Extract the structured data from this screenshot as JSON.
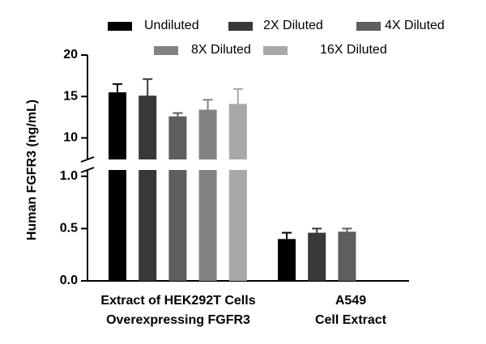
{
  "chart_data": {
    "type": "bar",
    "y_label": "Human FGFR3 (ng/mL)",
    "categories": [
      [
        "Extract of HEK292T Cells",
        "Overexpressing FGFR3"
      ],
      [
        "A549",
        "Cell Extract"
      ]
    ],
    "series": [
      {
        "name": "Undiluted",
        "color": "#000000",
        "values": [
          15.5,
          0.4
        ],
        "errors": [
          1.0,
          0.06
        ]
      },
      {
        "name": "2X Diluted",
        "color": "#383838",
        "values": [
          15.1,
          0.46
        ],
        "errors": [
          2.0,
          0.04
        ]
      },
      {
        "name": "4X Diluted",
        "color": "#5e5e5e",
        "values": [
          12.6,
          0.47
        ],
        "errors": [
          0.4,
          0.03
        ]
      },
      {
        "name": "8X Diluted",
        "color": "#828282",
        "values": [
          13.4,
          null
        ],
        "errors": [
          1.2,
          null
        ]
      },
      {
        "name": "16X Diluted",
        "color": "#a8a8a8",
        "values": [
          14.1,
          null
        ],
        "errors": [
          1.8,
          null
        ]
      }
    ],
    "y_segments": [
      {
        "ylim": [
          0,
          1.06
        ],
        "yticks": [
          {
            "value": 0,
            "label": "0.0"
          },
          {
            "value": 0.5,
            "label": "0.5"
          },
          {
            "value": 1,
            "label": "1.0"
          }
        ]
      },
      {
        "ylim": [
          7.4,
          20
        ],
        "yticks": [
          10,
          15,
          20
        ]
      }
    ]
  }
}
